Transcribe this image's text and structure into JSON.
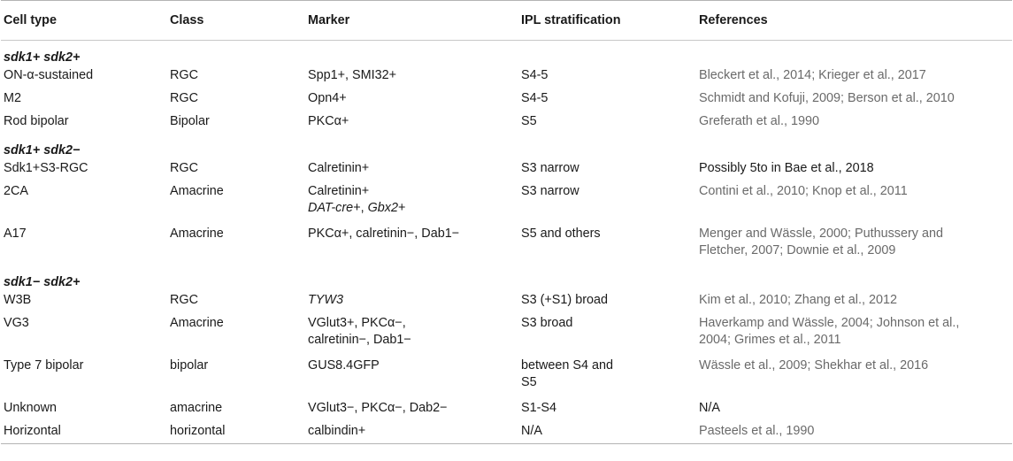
{
  "columns": [
    "Cell type",
    "Class",
    "Marker",
    "IPL stratification",
    "References"
  ],
  "groups": [
    {
      "label": "sdk1+ sdk2+",
      "rows": [
        {
          "type": "ON-α-sustained",
          "class": "RGC",
          "marker": [
            [
              {
                "t": "Spp1+, SMI32+"
              }
            ]
          ],
          "ipl": [
            "S4-5"
          ],
          "refs": [
            "Bleckert et al., 2014; Krieger et al., 2017"
          ],
          "refs_dark": false
        },
        {
          "type": "M2",
          "class": "RGC",
          "marker": [
            [
              {
                "t": "Opn4+"
              }
            ]
          ],
          "ipl": [
            "S4-5"
          ],
          "refs": [
            "Schmidt and Kofuji, 2009; Berson et al., 2010"
          ],
          "refs_dark": false
        },
        {
          "type": "Rod bipolar",
          "class": "Bipolar",
          "marker": [
            [
              {
                "t": "PKCα+"
              }
            ]
          ],
          "ipl": [
            "S5"
          ],
          "refs": [
            "Greferath et al., 1990"
          ],
          "refs_dark": false
        }
      ]
    },
    {
      "label": "sdk1+ sdk2−",
      "rows": [
        {
          "type": "Sdk1+S3-RGC",
          "class": "RGC",
          "marker": [
            [
              {
                "t": "Calretinin+"
              }
            ]
          ],
          "ipl": [
            "S3 narrow"
          ],
          "refs": [
            "Possibly 5to in Bae et al., 2018"
          ],
          "refs_dark": true
        },
        {
          "type": "2CA",
          "class": "Amacrine",
          "marker": [
            [
              {
                "t": "Calretinin+"
              }
            ],
            [
              {
                "t": "DAT-cre",
                "i": true
              },
              {
                "t": "+, "
              },
              {
                "t": "Gbx2",
                "i": true
              },
              {
                "t": "+"
              }
            ]
          ],
          "ipl": [
            "S3 narrow"
          ],
          "refs": [
            "Contini et al., 2010; Knop et al., 2011"
          ],
          "refs_dark": false
        },
        {
          "type": "A17",
          "class": "Amacrine",
          "marker": [
            [
              {
                "t": "PKCα+, calretinin−, Dab1−"
              }
            ]
          ],
          "ipl": [
            "S5 and others"
          ],
          "refs": [
            "Menger and Wässle, 2000; Puthussery and",
            "Fletcher, 2007; Downie et al., 2009"
          ],
          "refs_dark": false
        }
      ]
    },
    {
      "label": "sdk1− sdk2+",
      "rows": [
        {
          "type": "W3B",
          "class": "RGC",
          "marker": [
            [
              {
                "t": "TYW3",
                "i": true
              }
            ]
          ],
          "ipl": [
            "S3 (+S1) broad"
          ],
          "refs": [
            "Kim et al., 2010; Zhang et al., 2012"
          ],
          "refs_dark": false
        },
        {
          "type": "VG3",
          "class": "Amacrine",
          "marker": [
            [
              {
                "t": "VGlut3+, PKCα−,"
              }
            ],
            [
              {
                "t": "calretinin−, Dab1−"
              }
            ]
          ],
          "ipl": [
            "S3 broad"
          ],
          "refs": [
            "Haverkamp and Wässle, 2004; Johnson et al.,",
            "2004; Grimes et al., 2011"
          ],
          "refs_dark": false
        },
        {
          "type": "Type 7 bipolar",
          "class": "bipolar",
          "marker": [
            [
              {
                "t": "GUS8.4GFP"
              }
            ]
          ],
          "ipl": [
            "between S4 and",
            "S5"
          ],
          "refs": [
            "Wässle et al., 2009; Shekhar et al., 2016"
          ],
          "refs_dark": false
        },
        {
          "type": "Unknown",
          "class": "amacrine",
          "marker": [
            [
              {
                "t": "VGlut3−, PKCα−, Dab2−"
              }
            ]
          ],
          "ipl": [
            "S1-S4"
          ],
          "refs": [
            "N/A"
          ],
          "refs_dark": true
        },
        {
          "type": "Horizontal",
          "class": "horizontal",
          "marker": [
            [
              {
                "t": "calbindin+"
              }
            ]
          ],
          "ipl": [
            "N/A"
          ],
          "refs": [
            "Pasteels et al., 1990"
          ],
          "refs_dark": false
        }
      ]
    }
  ]
}
